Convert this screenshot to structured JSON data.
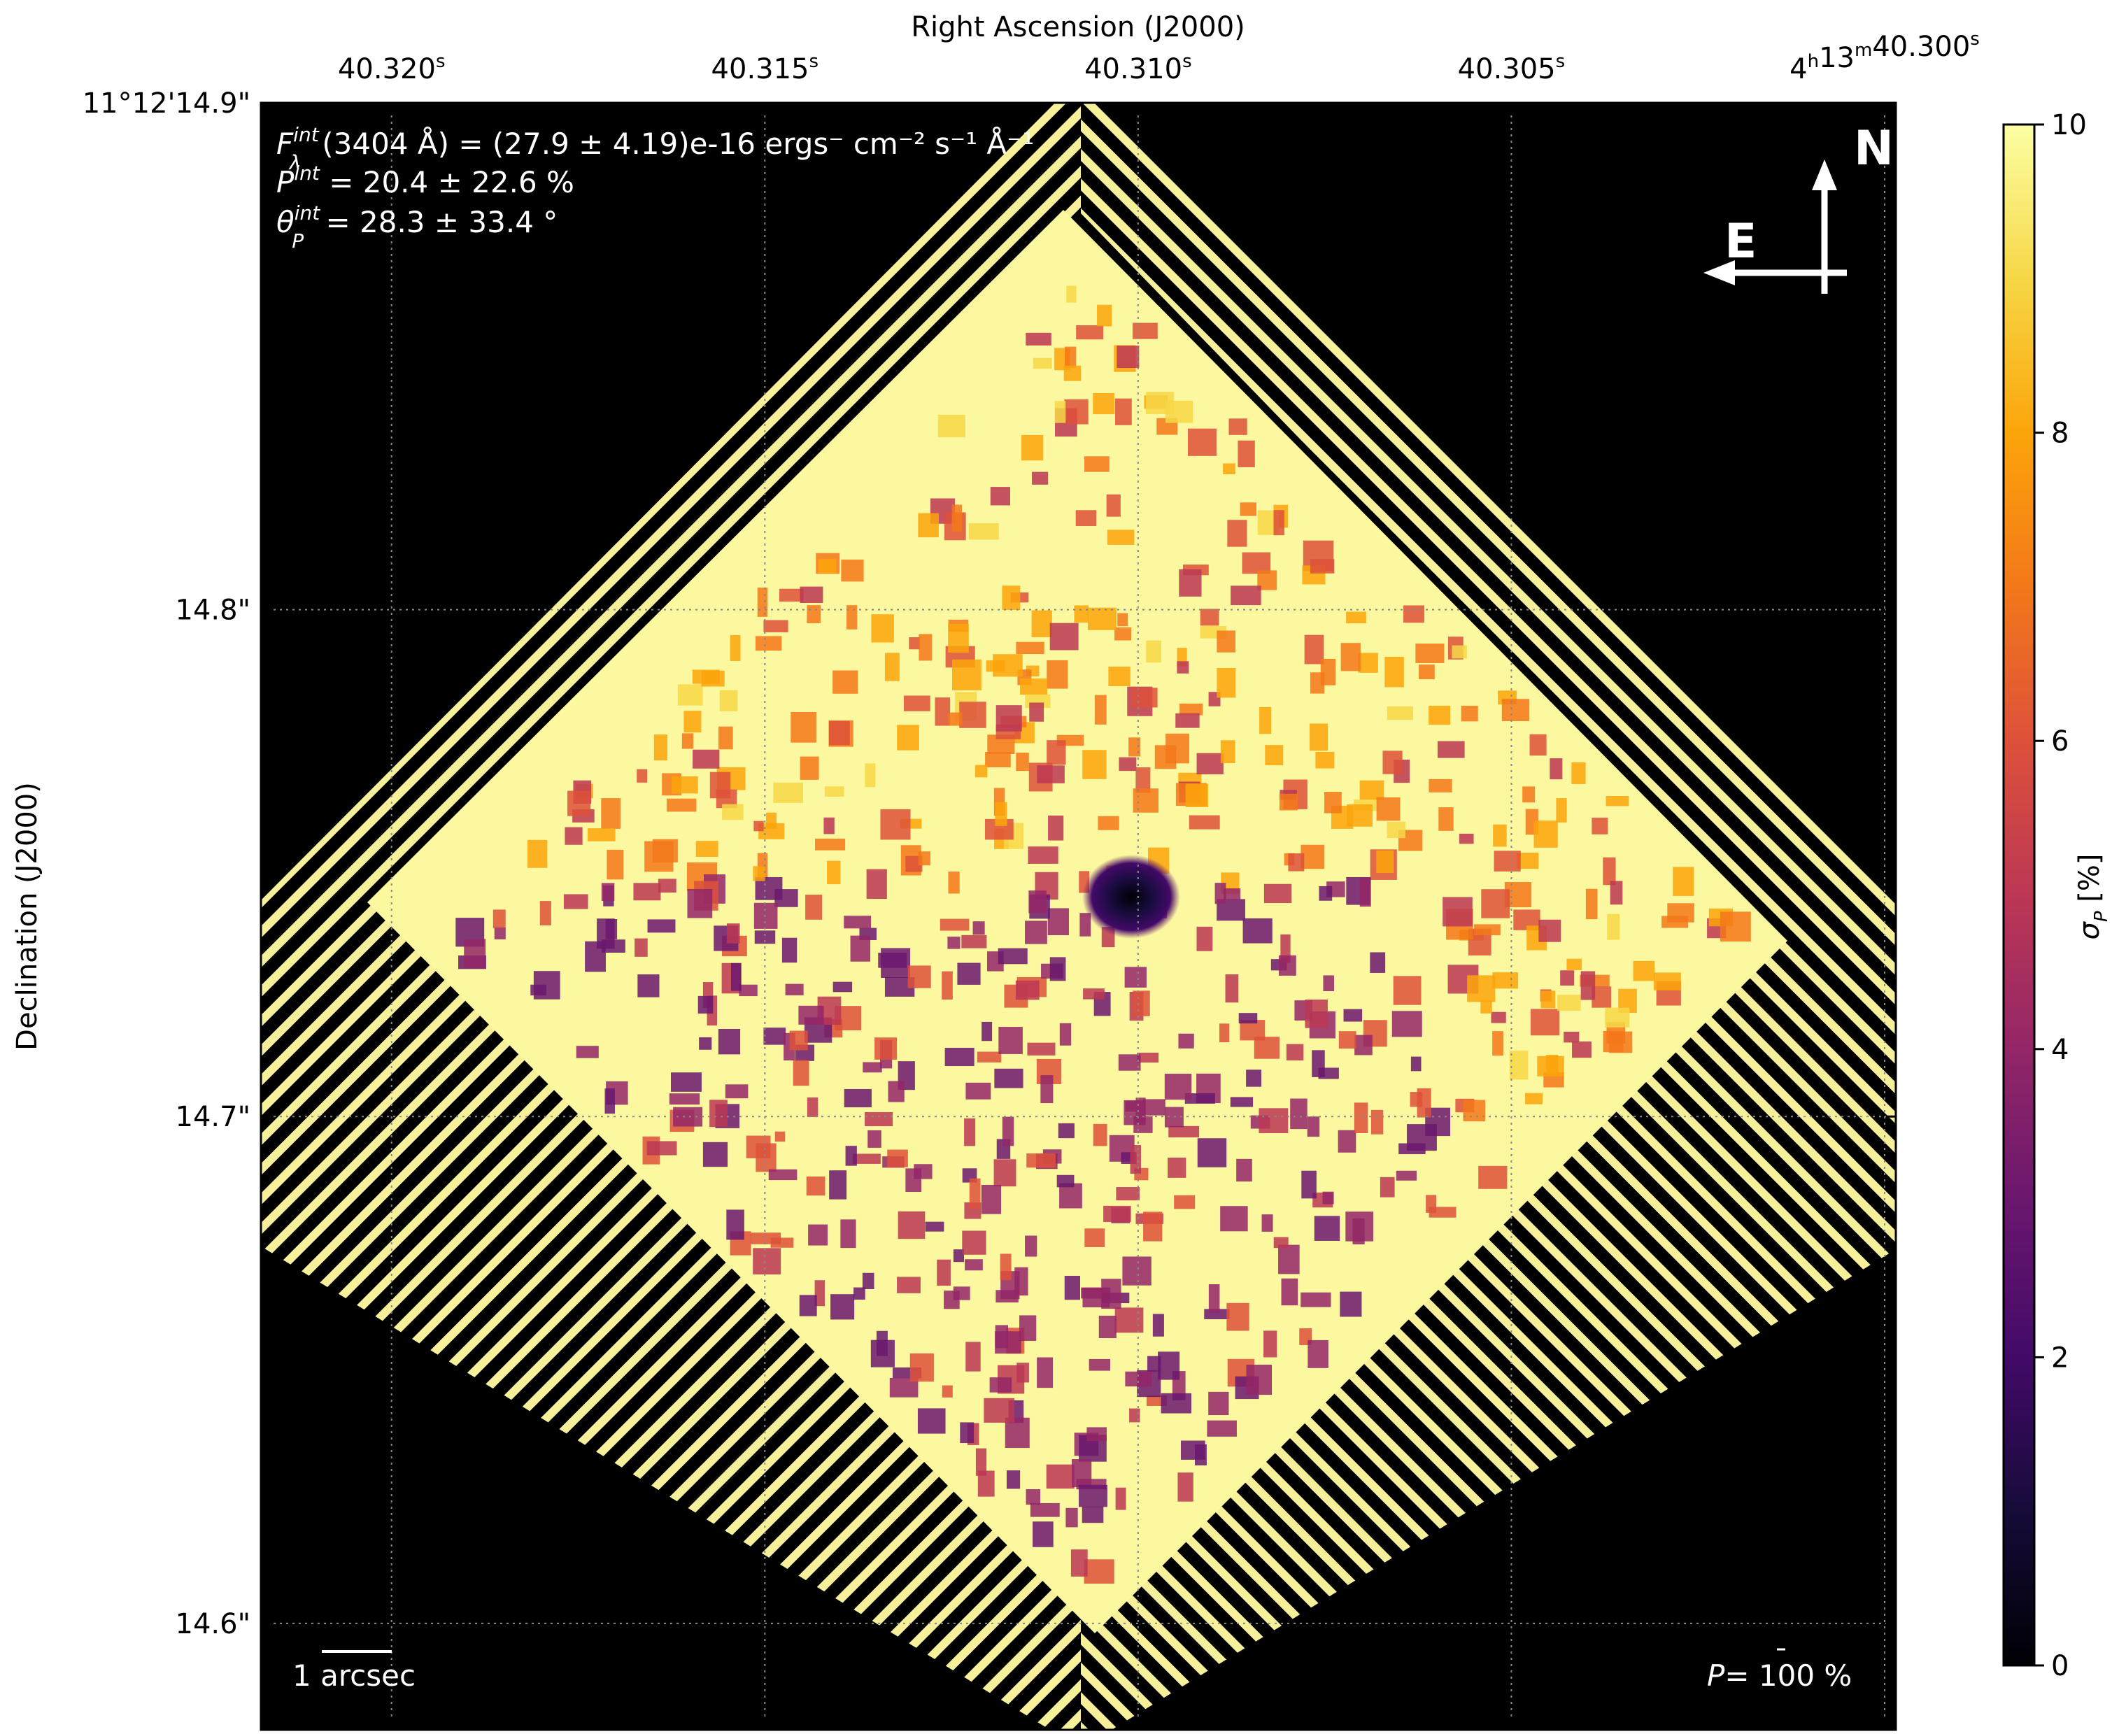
{
  "chart_data": {
    "type": "heatmap",
    "title": "",
    "xlabel": "Right Ascension (J2000)",
    "ylabel": "Declination (J2000)",
    "x_ticks": [
      {
        "pos": 40.32,
        "main": "40.320",
        "sup": "s",
        "prefix": "",
        "prefix_parts": []
      },
      {
        "pos": 40.315,
        "main": "40.315",
        "sup": "s",
        "prefix": "",
        "prefix_parts": []
      },
      {
        "pos": 40.31,
        "main": "40.310",
        "sup": "s",
        "prefix": "",
        "prefix_parts": []
      },
      {
        "pos": 40.305,
        "main": "40.305",
        "sup": "s",
        "prefix": "",
        "prefix_parts": []
      },
      {
        "pos": 40.3,
        "main": "40.300",
        "sup": "s",
        "prefix": "4h13m",
        "prefix_parts": [
          [
            "4",
            "h"
          ],
          [
            "13",
            "m"
          ]
        ]
      }
    ],
    "xlim": [
      40.32175,
      40.29985
    ],
    "y_ticks": [
      {
        "pos": 14.9,
        "text": "11°12'14.9\""
      },
      {
        "pos": 14.8,
        "text": "14.8\""
      },
      {
        "pos": 14.7,
        "text": "14.7\""
      },
      {
        "pos": 14.6,
        "text": "14.6\""
      }
    ],
    "ylim": [
      14.579,
      14.9
    ],
    "grid": true,
    "annotations": {
      "line1": {
        "sym": "F",
        "sub": "λ",
        "sup": "int",
        "text": "(3404 Å) = (27.9 ± 4.19)e-16 ergs⁻ cm⁻² s⁻¹ Å⁻¹"
      },
      "line2": {
        "sym": "P",
        "sup": "int",
        "text": " = 20.4 ± 22.6 %"
      },
      "line3": {
        "sym": "θ",
        "sub": "P",
        "sup": "int",
        "text": " = 28.3 ± 33.4 °"
      },
      "scalebar": "1 arcsec",
      "p_ref": {
        "sym": "P",
        "text": "= 100 %"
      }
    },
    "compass": {
      "north": "N",
      "east": "E"
    },
    "colorbar": {
      "label_sym": "σ",
      "label_sub": "P",
      "label_text": " [%]",
      "range": [
        0,
        10
      ],
      "ticks": [
        "0",
        "2",
        "4",
        "6",
        "8",
        "10"
      ],
      "colormap": "inferno"
    },
    "central_minimum": {
      "ra": 40.3101,
      "dec": 14.7445,
      "value": 0.3
    }
  }
}
